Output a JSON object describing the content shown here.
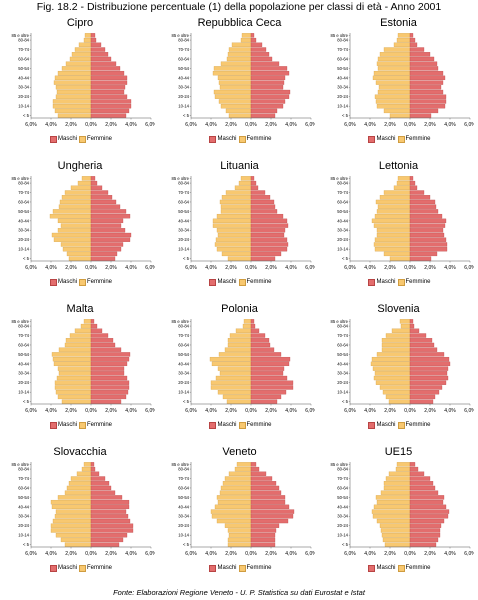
{
  "figure_title": "Fig. 18.2 - Distribuzione percentuale (1) della popolazione per classi di età - Anno 2001",
  "source": "Fonte: Elaborazioni Regione Veneto - U. P. Statistica su dati Eurostat e Istat",
  "legend": {
    "maschi": "Maschi",
    "femmine": "Femmine"
  },
  "colors": {
    "maschi": "#e36d6d",
    "maschi_edge": "#b84444",
    "femmine": "#f8c870",
    "femmine_edge": "#cf9c40",
    "axis": "#555555"
  },
  "x_tick_labels": [
    "6,0%",
    "4,0%",
    "2,0%",
    "0,0%",
    "2,0%",
    "4,0%",
    "6,0%"
  ],
  "y_tick_labels": [
    "< 5",
    "",
    "10-14",
    "",
    "20-24",
    "",
    "30-34",
    "",
    "40-44",
    "",
    "50-54",
    "",
    "60-64",
    "",
    "70-74",
    "",
    "80-84",
    "85 e oltre"
  ],
  "chart_data": [
    {
      "type": "bar",
      "title": "Cipro",
      "xlim": [
        -6,
        6
      ],
      "series": [
        {
          "name": "Femmine",
          "values": [
            3.3,
            3.6,
            3.8,
            3.8,
            3.5,
            3.4,
            3.5,
            3.7,
            3.6,
            3.3,
            2.9,
            2.5,
            2.1,
            1.9,
            1.6,
            1.2,
            0.7,
            0.6
          ]
        },
        {
          "name": "Maschi",
          "values": [
            3.5,
            3.8,
            4.0,
            4.0,
            3.6,
            3.3,
            3.4,
            3.6,
            3.6,
            3.3,
            2.9,
            2.5,
            2.0,
            1.7,
            1.4,
            1.0,
            0.5,
            0.4
          ]
        }
      ]
    },
    {
      "type": "bar",
      "title": "Repubblica Ceca",
      "xlim": [
        -6,
        6
      ],
      "series": [
        {
          "name": "Femmine",
          "values": [
            2.2,
            2.5,
            3.0,
            3.2,
            3.6,
            3.7,
            3.1,
            3.2,
            3.3,
            3.8,
            3.7,
            3.0,
            2.4,
            2.3,
            2.2,
            1.9,
            1.0,
            0.9
          ]
        },
        {
          "name": "Maschi",
          "values": [
            2.4,
            2.6,
            3.2,
            3.4,
            3.8,
            3.9,
            3.2,
            3.3,
            3.4,
            3.8,
            3.6,
            2.8,
            2.1,
            1.8,
            1.5,
            1.1,
            0.5,
            0.3
          ]
        }
      ]
    },
    {
      "type": "bar",
      "title": "Estonia",
      "xlim": [
        -6,
        6
      ],
      "series": [
        {
          "name": "Femmine",
          "values": [
            2.0,
            2.6,
            3.3,
            3.4,
            3.5,
            3.2,
            3.1,
            3.4,
            3.7,
            3.6,
            3.2,
            3.3,
            3.2,
            3.0,
            2.6,
            1.6,
            1.3,
            1.2
          ]
        },
        {
          "name": "Maschi",
          "values": [
            2.1,
            2.8,
            3.5,
            3.6,
            3.6,
            3.3,
            3.1,
            3.3,
            3.5,
            3.3,
            2.8,
            2.7,
            2.4,
            2.0,
            1.4,
            0.7,
            0.5,
            0.3
          ]
        }
      ]
    },
    {
      "type": "bar",
      "title": "Ungheria",
      "xlim": [
        -6,
        6
      ],
      "series": [
        {
          "name": "Femmine",
          "values": [
            2.2,
            2.4,
            2.8,
            3.0,
            3.7,
            3.9,
            3.3,
            3.0,
            3.3,
            4.1,
            3.8,
            3.2,
            3.1,
            2.9,
            2.6,
            2.0,
            1.3,
            0.9
          ]
        },
        {
          "name": "Maschi",
          "values": [
            2.4,
            2.6,
            3.0,
            3.2,
            3.9,
            4.0,
            3.4,
            3.0,
            3.2,
            3.9,
            3.5,
            2.9,
            2.5,
            2.1,
            1.7,
            1.1,
            0.6,
            0.4
          ]
        }
      ]
    },
    {
      "type": "bar",
      "title": "Lituania",
      "xlim": [
        -6,
        6
      ],
      "series": [
        {
          "name": "Femmine",
          "values": [
            2.3,
            2.9,
            3.4,
            3.6,
            3.5,
            3.3,
            3.4,
            3.8,
            3.8,
            3.4,
            3.0,
            3.0,
            3.1,
            2.9,
            2.5,
            1.6,
            1.2,
            1.0
          ]
        },
        {
          "name": "Maschi",
          "values": [
            2.4,
            3.0,
            3.6,
            3.7,
            3.6,
            3.3,
            3.4,
            3.7,
            3.6,
            3.2,
            2.6,
            2.4,
            2.3,
            1.9,
            1.4,
            0.7,
            0.5,
            0.3
          ]
        }
      ]
    },
    {
      "type": "bar",
      "title": "Lettonia",
      "xlim": [
        -6,
        6
      ],
      "series": [
        {
          "name": "Femmine",
          "values": [
            2.0,
            2.6,
            3.5,
            3.6,
            3.5,
            3.3,
            3.3,
            3.6,
            3.8,
            3.5,
            3.3,
            3.2,
            3.4,
            3.0,
            2.6,
            1.6,
            1.3,
            1.2
          ]
        },
        {
          "name": "Maschi",
          "values": [
            2.1,
            2.7,
            3.7,
            3.7,
            3.6,
            3.4,
            3.3,
            3.5,
            3.6,
            3.2,
            2.8,
            2.6,
            2.5,
            2.0,
            1.4,
            0.7,
            0.5,
            0.3
          ]
        }
      ]
    },
    {
      "type": "bar",
      "title": "Malta",
      "xlim": [
        -6,
        6
      ],
      "series": [
        {
          "name": "Femmine",
          "values": [
            2.9,
            3.3,
            3.5,
            3.6,
            3.6,
            3.4,
            3.2,
            3.3,
            3.7,
            3.8,
            3.9,
            3.2,
            2.6,
            2.5,
            2.1,
            1.6,
            1.0,
            0.7
          ]
        },
        {
          "name": "Maschi",
          "values": [
            3.0,
            3.5,
            3.7,
            3.8,
            3.8,
            3.6,
            3.3,
            3.3,
            3.6,
            3.8,
            3.9,
            3.0,
            2.4,
            2.2,
            1.7,
            1.1,
            0.6,
            0.3
          ]
        }
      ]
    },
    {
      "type": "bar",
      "title": "Polonia",
      "xlim": [
        -6,
        6
      ],
      "series": [
        {
          "name": "Femmine",
          "values": [
            2.4,
            2.8,
            3.3,
            4.0,
            4.0,
            3.5,
            3.1,
            3.3,
            3.9,
            4.1,
            3.2,
            2.6,
            2.3,
            2.3,
            2.1,
            1.5,
            0.8,
            0.7
          ]
        },
        {
          "name": "Maschi",
          "values": [
            2.6,
            3.0,
            3.5,
            4.2,
            4.2,
            3.6,
            3.2,
            3.3,
            3.8,
            3.9,
            3.0,
            2.3,
            1.9,
            1.8,
            1.4,
            0.8,
            0.4,
            0.3
          ]
        }
      ]
    },
    {
      "type": "bar",
      "title": "Slovenia",
      "xlim": [
        -6,
        6
      ],
      "series": [
        {
          "name": "Femmine",
          "values": [
            2.1,
            2.4,
            2.7,
            3.0,
            3.4,
            3.6,
            3.5,
            3.7,
            3.9,
            3.8,
            3.3,
            2.8,
            2.8,
            2.8,
            2.4,
            1.8,
            0.9,
            1.0
          ]
        },
        {
          "name": "Maschi",
          "values": [
            2.3,
            2.5,
            2.9,
            3.2,
            3.6,
            3.8,
            3.7,
            3.8,
            4.0,
            3.9,
            3.4,
            2.7,
            2.4,
            2.2,
            1.6,
            0.9,
            0.4,
            0.3
          ]
        }
      ]
    },
    {
      "type": "bar",
      "title": "Slovacchia",
      "xlim": [
        -6,
        6
      ],
      "series": [
        {
          "name": "Femmine",
          "values": [
            2.6,
            3.0,
            3.5,
            4.0,
            4.0,
            3.8,
            3.6,
            3.5,
            3.9,
            4.0,
            3.3,
            2.6,
            2.4,
            2.2,
            2.0,
            1.4,
            0.9,
            0.7
          ]
        },
        {
          "name": "Maschi",
          "values": [
            2.8,
            3.2,
            3.6,
            4.2,
            4.2,
            3.9,
            3.7,
            3.5,
            3.8,
            3.8,
            3.1,
            2.4,
            2.0,
            1.8,
            1.4,
            0.8,
            0.4,
            0.3
          ]
        }
      ]
    },
    {
      "type": "bar",
      "title": "Veneto",
      "xlim": [
        -6,
        6
      ],
      "series": [
        {
          "name": "Femmine",
          "values": [
            2.3,
            2.3,
            2.2,
            2.3,
            2.6,
            3.4,
            3.9,
            4.0,
            3.6,
            3.3,
            3.4,
            3.1,
            3.0,
            2.8,
            2.6,
            2.2,
            1.6,
            1.4
          ]
        },
        {
          "name": "Maschi",
          "values": [
            2.4,
            2.4,
            2.4,
            2.5,
            2.8,
            3.7,
            4.2,
            4.3,
            3.8,
            3.4,
            3.4,
            3.0,
            2.8,
            2.5,
            2.1,
            1.5,
            0.8,
            0.5
          ]
        }
      ]
    },
    {
      "type": "bar",
      "title": "UE15",
      "xlim": [
        -6,
        6
      ],
      "series": [
        {
          "name": "Femmine",
          "values": [
            2.5,
            2.7,
            2.8,
            2.9,
            3.0,
            3.3,
            3.7,
            3.8,
            3.6,
            3.3,
            3.4,
            2.9,
            2.6,
            2.6,
            2.4,
            2.1,
            1.4,
            1.3
          ]
        },
        {
          "name": "Maschi",
          "values": [
            2.6,
            2.8,
            3.0,
            3.0,
            3.1,
            3.4,
            3.8,
            3.9,
            3.6,
            3.3,
            3.4,
            2.8,
            2.5,
            2.3,
            2.0,
            1.4,
            0.8,
            0.5
          ]
        }
      ]
    }
  ]
}
